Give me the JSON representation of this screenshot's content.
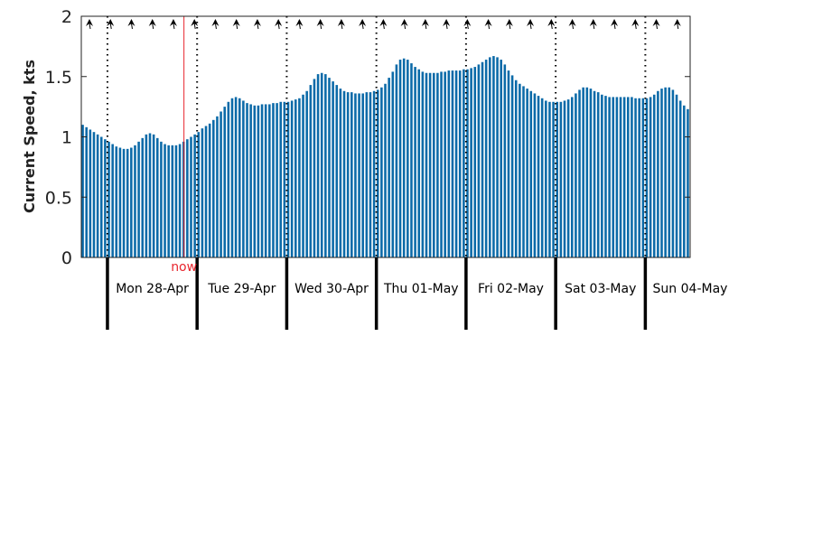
{
  "chart_data": {
    "type": "bar",
    "ylabel": "Current Speed, kts",
    "ylim": [
      0,
      2
    ],
    "yticks": [
      "0",
      "0.5",
      "1",
      "1.5",
      "2"
    ],
    "now_label": "now",
    "now_index": 27,
    "day_labels": [
      "Mon 28-Apr",
      "Tue 29-Apr",
      "Wed 30-Apr",
      "Thu 01-May",
      "Fri 02-May",
      "Sat 03-May",
      "Sun 04-May"
    ],
    "day_boundary_indices": [
      7,
      31,
      55,
      79,
      103,
      127,
      151
    ],
    "bar_color": "#0b6aa8",
    "now_color": "#e8262e",
    "values": [
      1.1,
      1.08,
      1.06,
      1.04,
      1.02,
      1.0,
      0.98,
      0.96,
      0.94,
      0.92,
      0.91,
      0.9,
      0.9,
      0.91,
      0.93,
      0.96,
      0.99,
      1.02,
      1.03,
      1.02,
      0.99,
      0.96,
      0.94,
      0.93,
      0.93,
      0.93,
      0.94,
      0.96,
      0.98,
      1.0,
      1.02,
      1.04,
      1.07,
      1.09,
      1.11,
      1.14,
      1.17,
      1.21,
      1.25,
      1.29,
      1.32,
      1.33,
      1.32,
      1.3,
      1.28,
      1.27,
      1.26,
      1.26,
      1.27,
      1.27,
      1.27,
      1.28,
      1.28,
      1.29,
      1.29,
      1.29,
      1.3,
      1.31,
      1.32,
      1.35,
      1.38,
      1.43,
      1.48,
      1.52,
      1.53,
      1.52,
      1.49,
      1.46,
      1.43,
      1.4,
      1.38,
      1.37,
      1.37,
      1.36,
      1.36,
      1.36,
      1.37,
      1.37,
      1.38,
      1.39,
      1.41,
      1.44,
      1.49,
      1.54,
      1.6,
      1.64,
      1.65,
      1.64,
      1.61,
      1.58,
      1.56,
      1.54,
      1.53,
      1.53,
      1.53,
      1.53,
      1.54,
      1.54,
      1.55,
      1.55,
      1.55,
      1.55,
      1.56,
      1.56,
      1.57,
      1.58,
      1.6,
      1.62,
      1.64,
      1.66,
      1.67,
      1.66,
      1.64,
      1.6,
      1.55,
      1.51,
      1.47,
      1.44,
      1.42,
      1.4,
      1.38,
      1.36,
      1.34,
      1.32,
      1.3,
      1.29,
      1.29,
      1.29,
      1.29,
      1.3,
      1.31,
      1.33,
      1.36,
      1.39,
      1.41,
      1.41,
      1.4,
      1.38,
      1.37,
      1.35,
      1.34,
      1.33,
      1.33,
      1.33,
      1.33,
      1.33,
      1.33,
      1.33,
      1.32,
      1.32,
      1.32,
      1.32,
      1.33,
      1.35,
      1.38,
      1.4,
      1.41,
      1.41,
      1.39,
      1.35,
      1.3,
      1.26,
      1.23
    ],
    "arrow_count": 29
  }
}
